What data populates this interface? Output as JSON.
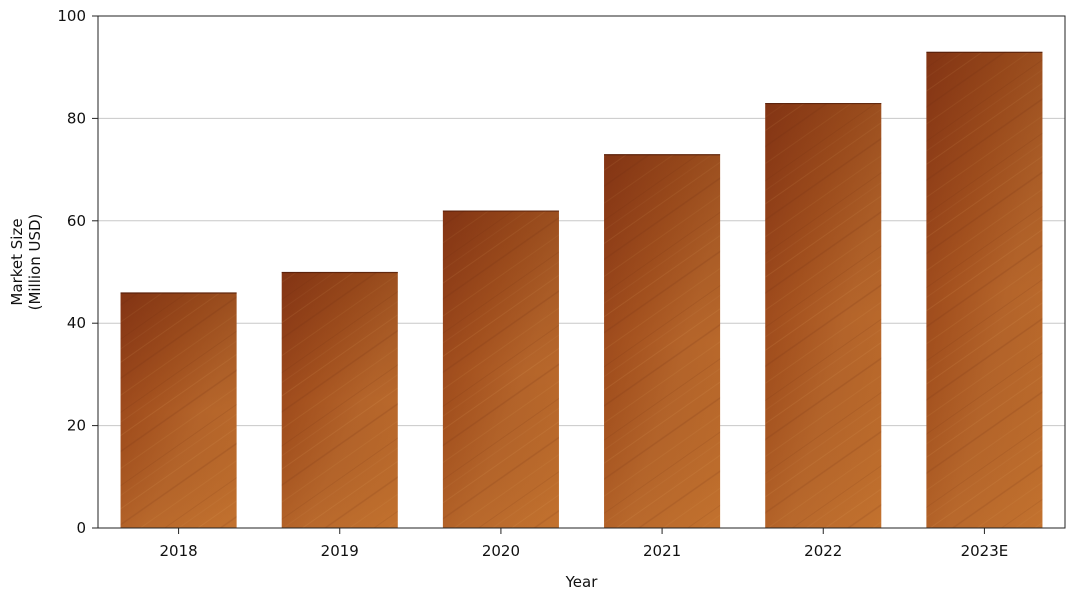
{
  "chart_data": {
    "type": "bar",
    "categories": [
      "2018",
      "2019",
      "2020",
      "2021",
      "2022",
      "2023E"
    ],
    "values": [
      46,
      50,
      62,
      73,
      83,
      93
    ],
    "xlabel": "Year",
    "ylabel": [
      "Market Size",
      "(Million USD)"
    ],
    "ylim": [
      0,
      100
    ],
    "yticks": [
      "0",
      "20",
      "40",
      "60",
      "80",
      "100"
    ],
    "grid": "horizontal",
    "bar_color": "#9c4a1c",
    "bar_texture": "wood-grain",
    "legend": "none"
  }
}
